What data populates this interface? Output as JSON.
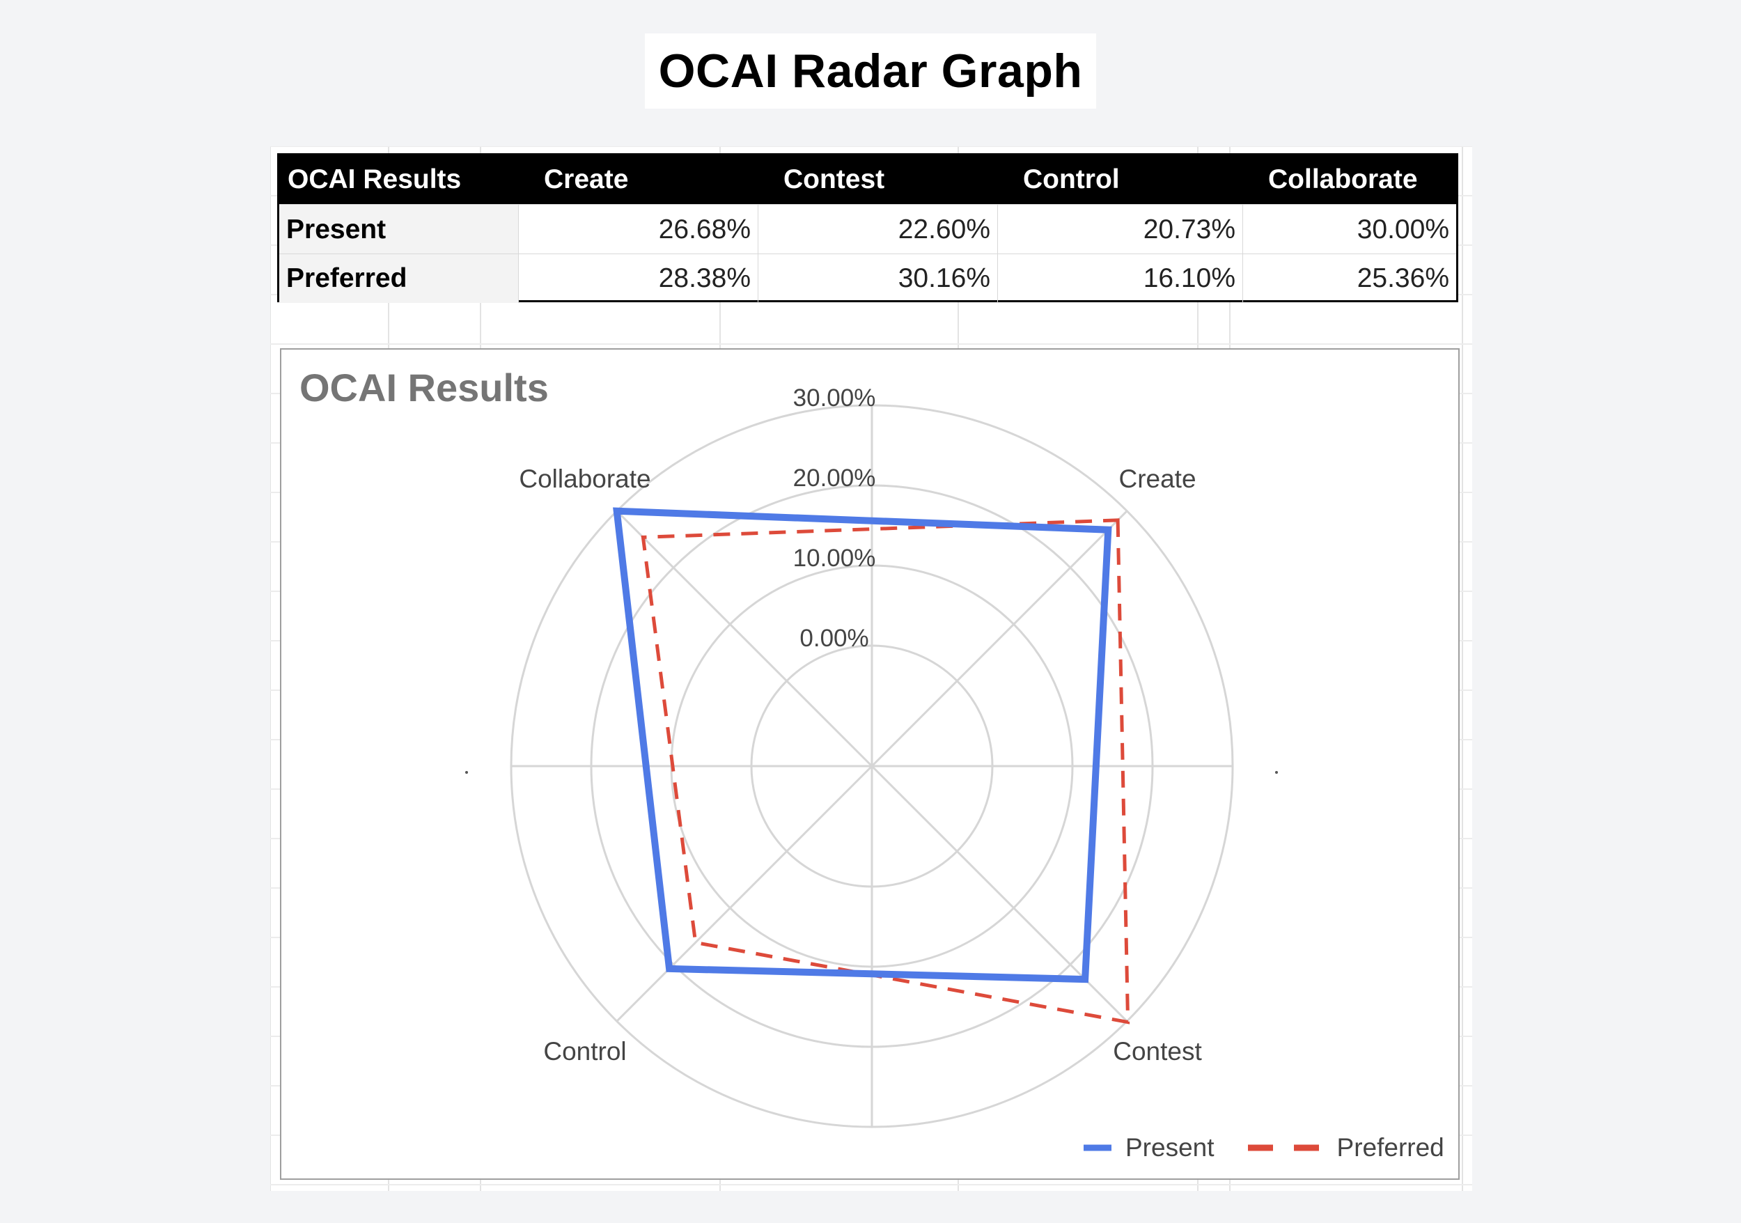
{
  "page_title": "OCAI Radar Graph",
  "table": {
    "headers": [
      "OCAI Results",
      "Create",
      "Contest",
      "Control",
      "Collaborate"
    ],
    "rows": [
      {
        "label": "Present",
        "values": [
          "26.68%",
          "22.60%",
          "20.73%",
          "30.00%"
        ]
      },
      {
        "label": "Preferred",
        "values": [
          "28.38%",
          "30.16%",
          "16.10%",
          "25.36%"
        ]
      }
    ]
  },
  "chart_data": {
    "type": "radar",
    "title": "OCAI Results",
    "categories": [
      "Create",
      "Contest",
      "Control",
      "Collaborate"
    ],
    "series": [
      {
        "name": "Present",
        "values": [
          26.68,
          22.6,
          20.73,
          30.0
        ],
        "color": "#4f7ae6",
        "style": "solid"
      },
      {
        "name": "Preferred",
        "values": [
          28.38,
          30.16,
          16.1,
          25.36
        ],
        "color": "#dd4a3a",
        "style": "dashed"
      }
    ],
    "rlim": [
      0,
      30
    ],
    "ticks": [
      0,
      10,
      20,
      30
    ],
    "tick_labels": [
      "0.00%",
      "10.00%",
      "20.00%",
      "30.00%"
    ],
    "grid": true,
    "legend_position": "bottom-right"
  }
}
